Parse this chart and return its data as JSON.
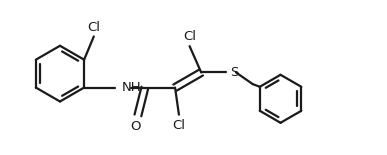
{
  "background_color": "#ffffff",
  "line_color": "#1a1a1a",
  "line_width": 1.6,
  "font_size": 9.5,
  "fig_width": 3.87,
  "fig_height": 1.55,
  "dpi": 100,
  "xlim": [
    0,
    10
  ],
  "ylim": [
    0,
    4
  ]
}
